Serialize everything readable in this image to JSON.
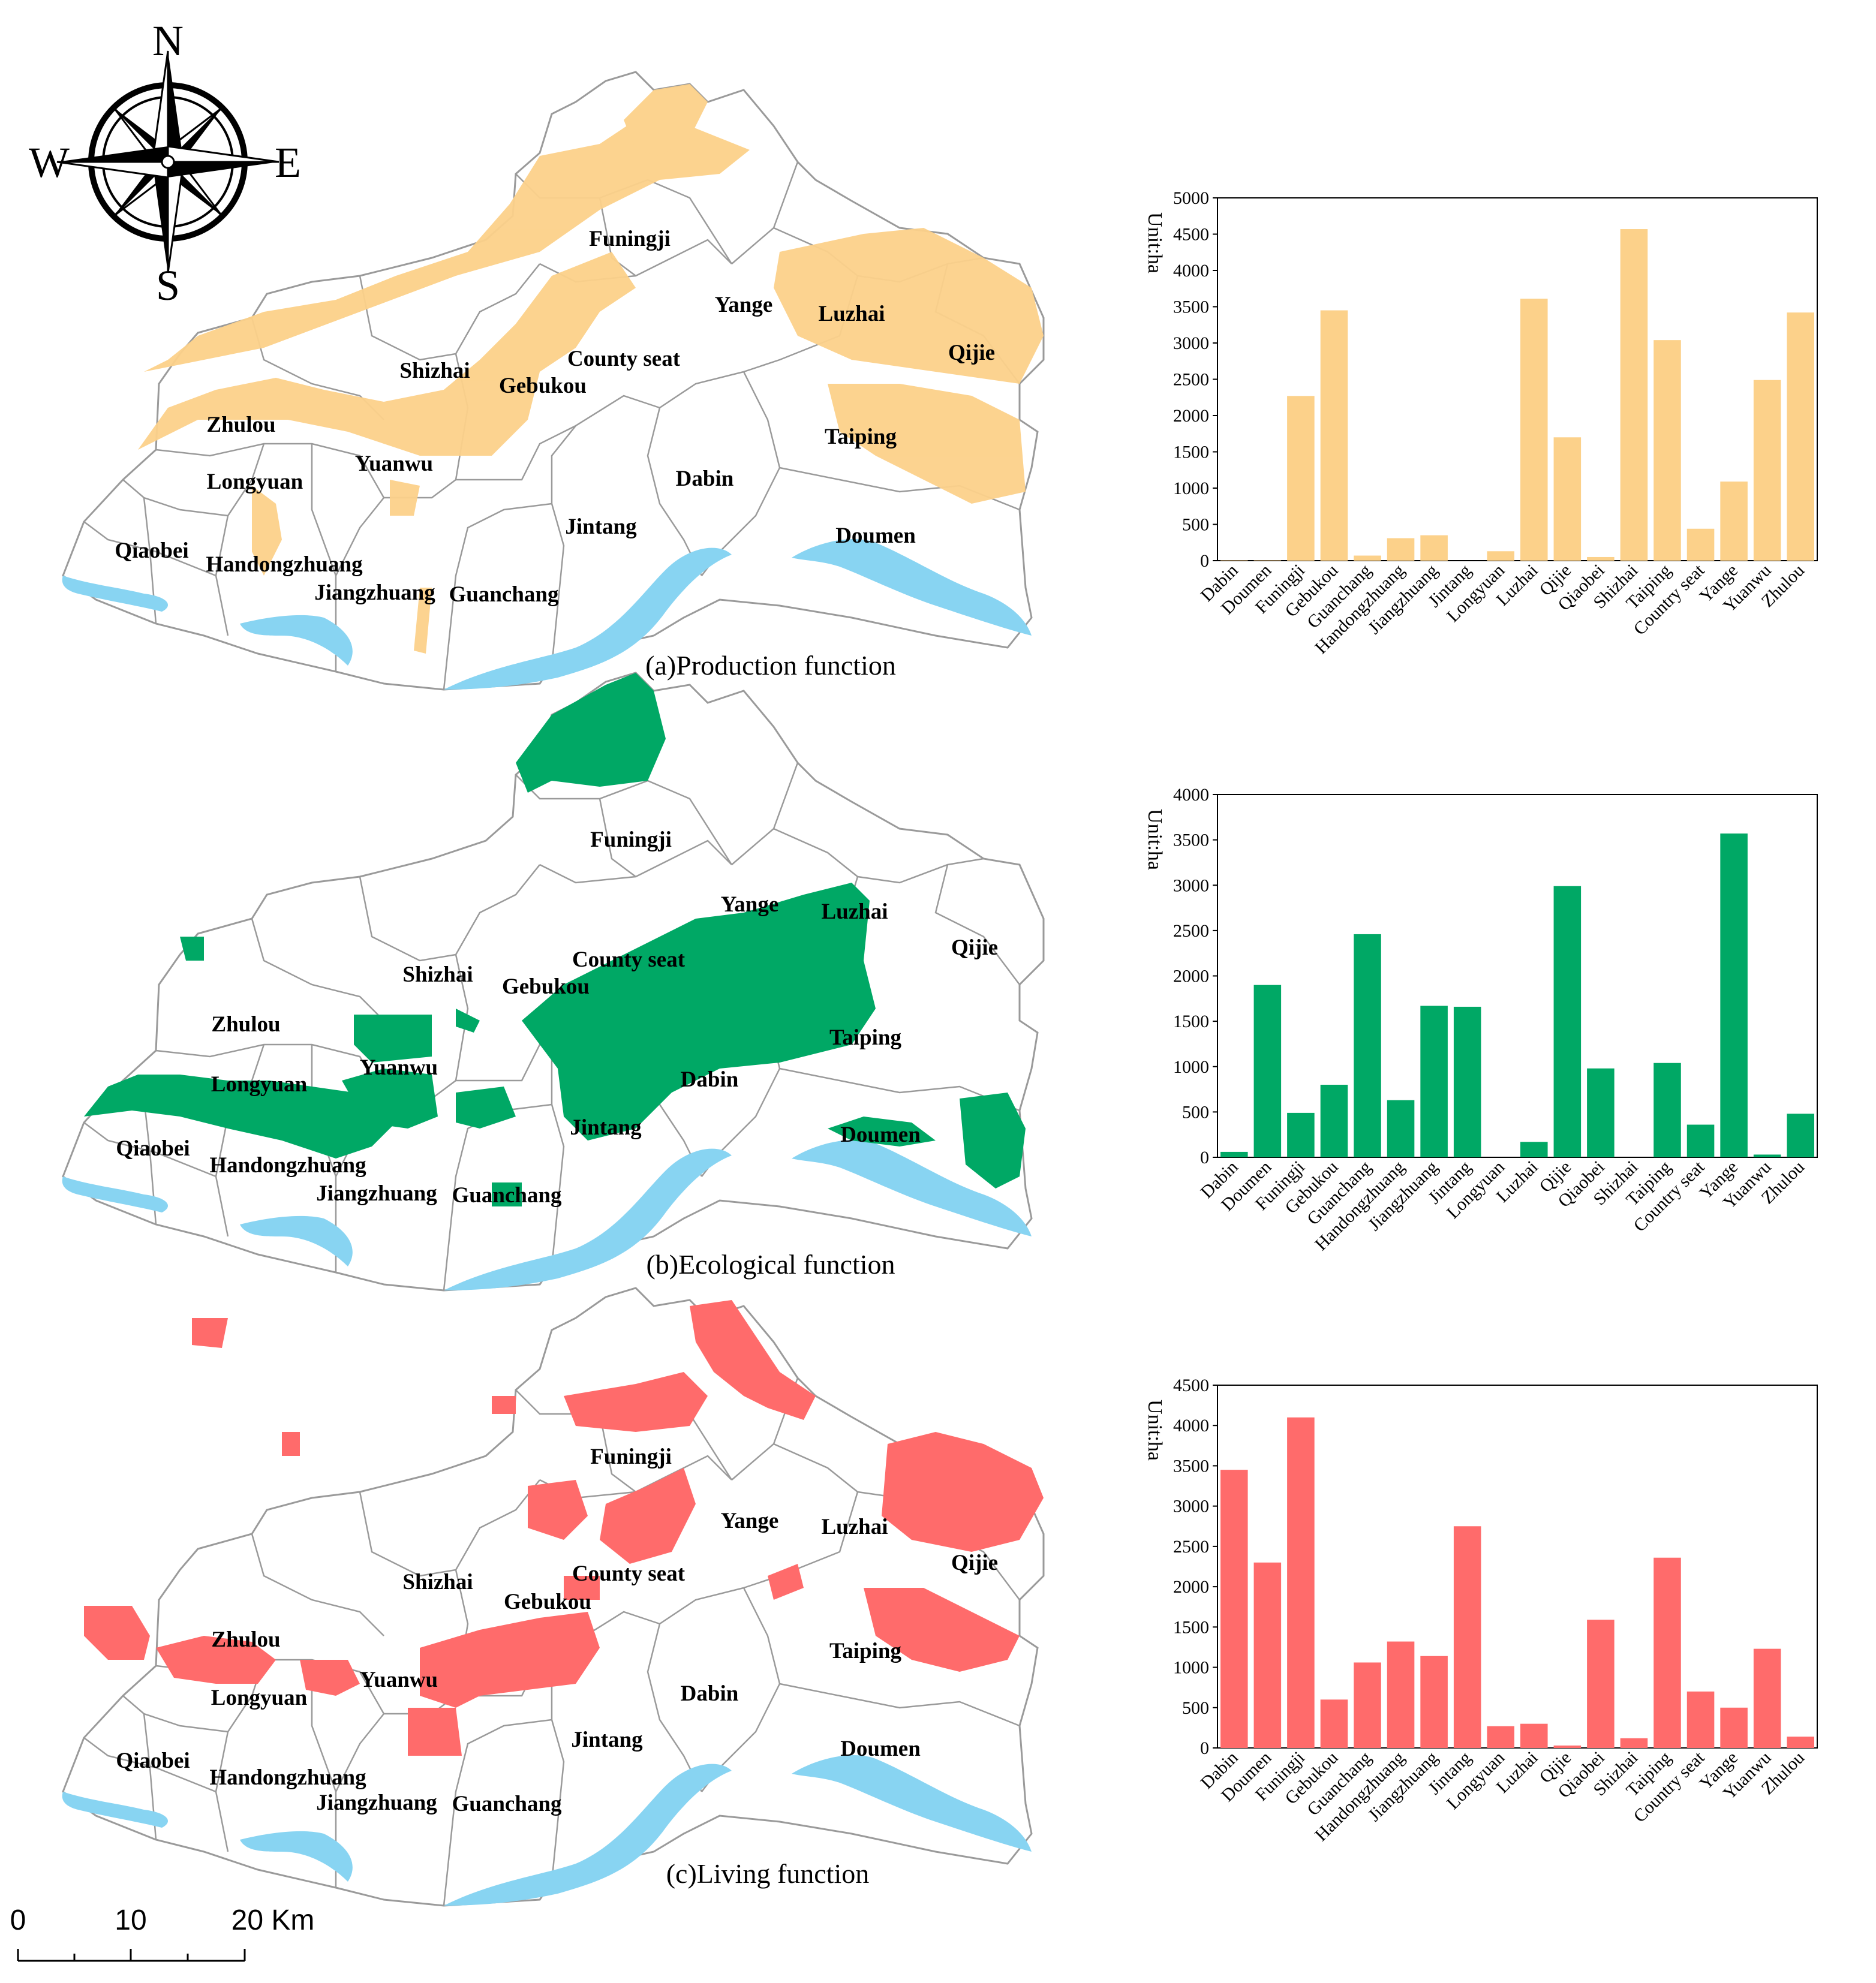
{
  "compass": {
    "north": "N",
    "south": "S",
    "east": "E",
    "west": "W"
  },
  "scale_bar": {
    "labels": [
      "0",
      "10",
      "20 Km"
    ]
  },
  "colors": {
    "production": "#fcd18a",
    "ecological": "#00a865",
    "living": "#ff6b6b",
    "water": "#88d4f2",
    "boundary": "#9a9a9a"
  },
  "panels": [
    {
      "caption": "(a)Production function",
      "color": "#fcd18a",
      "labels": {
        "funingji": "Funingji",
        "yange": "Yange",
        "luzhai": "Luzhai",
        "qijie": "Qijie",
        "county_seat": "County seat",
        "shizhai": "Shizhai",
        "gebukou": "Gebukou",
        "zhulou": "Zhulou",
        "taiping": "Taiping",
        "yuanwu": "Yuanwu",
        "longyuan": "Longyuan",
        "dabin": "Dabin",
        "jintang": "Jintang",
        "doumen": "Doumen",
        "qiaobei": "Qiaobei",
        "handongzhuang": "Handongzhuang",
        "jiangzhuang": "Jiangzhuang",
        "guanchang": "Guanchang"
      }
    },
    {
      "caption": "(b)Ecological function",
      "color": "#00a865",
      "labels": {
        "funingji": "Funingji",
        "yange": "Yange",
        "luzhai": "Luzhai",
        "qijie": "Qijie",
        "county_seat": "County seat",
        "shizhai": "Shizhai",
        "gebukou": "Gebukou",
        "zhulou": "Zhulou",
        "taiping": "Taiping",
        "yuanwu": "Yuanwu",
        "longyuan": "Longyuan",
        "dabin": "Dabin",
        "jintang": "Jintang",
        "doumen": "Doumen",
        "qiaobei": "Qiaobei",
        "handongzhuang": "Handongzhuang",
        "jiangzhuang": "Jiangzhuang",
        "guanchang": "Guanchang"
      }
    },
    {
      "caption": "(c)Living function",
      "color": "#ff6b6b",
      "labels": {
        "funingji": "Funingji",
        "yange": "Yange",
        "luzhai": "Luzhai",
        "qijie": "Qijie",
        "county_seat": "County seat",
        "shizhai": "Shizhai",
        "gebukou": "Gebukou",
        "zhulou": "Zhulou",
        "taiping": "Taiping",
        "yuanwu": "Yuanwu",
        "longyuan": "Longyuan",
        "dabin": "Dabin",
        "jintang": "Jintang",
        "doumen": "Doumen",
        "qiaobei": "Qiaobei",
        "handongzhuang": "Handongzhuang",
        "jiangzhuang": "Jiangzhuang",
        "guanchang": "Guanchang"
      }
    }
  ],
  "chart_data": [
    {
      "type": "bar",
      "title": "",
      "xlabel": "",
      "ylabel": "Unit:ha",
      "ylim": [
        0,
        5000
      ],
      "yticks": [
        0,
        500,
        1000,
        1500,
        2000,
        2500,
        3000,
        3500,
        4000,
        4500,
        5000
      ],
      "color": "#fcd18a",
      "categories": [
        "Dabin",
        "Doumen",
        "Funingji",
        "Gebukou",
        "Guanchang",
        "Handongzhuang",
        "Jiangzhuang",
        "Jintang",
        "Longyuan",
        "Luzhai",
        "Qijie",
        "Qiaobei",
        "Shizhai",
        "Taiping",
        "Country seat",
        "Yange",
        "Yuanwu",
        "Zhulou"
      ],
      "values": [
        5,
        5,
        2270,
        3450,
        70,
        310,
        350,
        0,
        130,
        3610,
        1700,
        50,
        4570,
        3040,
        440,
        1090,
        2490,
        3420
      ]
    },
    {
      "type": "bar",
      "title": "",
      "xlabel": "",
      "ylabel": "Unit:ha",
      "ylim": [
        0,
        4000
      ],
      "yticks": [
        0,
        500,
        1000,
        1500,
        2000,
        2500,
        3000,
        3500,
        4000
      ],
      "color": "#00a865",
      "categories": [
        "Dabin",
        "Doumen",
        "Funingji",
        "Gebukou",
        "Guanchang",
        "Handongzhuang",
        "Jiangzhuang",
        "Jintang",
        "Longyuan",
        "Luzhai",
        "Qijie",
        "Qiaobei",
        "Shizhai",
        "Taiping",
        "Country seat",
        "Yange",
        "Yuanwu",
        "Zhulou"
      ],
      "values": [
        60,
        1900,
        490,
        800,
        2460,
        630,
        1670,
        1660,
        0,
        170,
        2990,
        980,
        0,
        1040,
        360,
        3570,
        30,
        480
      ]
    },
    {
      "type": "bar",
      "title": "",
      "xlabel": "",
      "ylabel": "Unit:ha",
      "ylim": [
        0,
        4500
      ],
      "yticks": [
        0,
        500,
        1000,
        1500,
        2000,
        2500,
        3000,
        3500,
        4000,
        4500
      ],
      "color": "#ff6b6b",
      "categories": [
        "Dabin",
        "Doumen",
        "Funingji",
        "Gebukou",
        "Guanchang",
        "Handongzhuang",
        "Jiangzhuang",
        "Jintang",
        "Longyuan",
        "Luzhai",
        "Qijie",
        "Qiaobei",
        "Shizhai",
        "Taiping",
        "Country seat",
        "Yange",
        "Yuanwu",
        "Zhulou"
      ],
      "values": [
        3450,
        2300,
        4100,
        600,
        1060,
        1320,
        1140,
        2750,
        270,
        300,
        30,
        1590,
        120,
        2360,
        700,
        500,
        1230,
        140
      ]
    }
  ]
}
